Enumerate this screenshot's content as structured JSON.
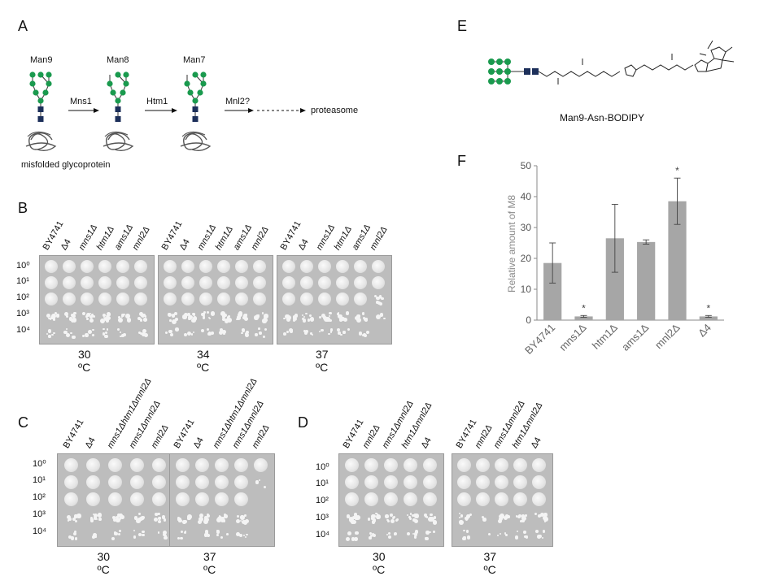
{
  "panels": {
    "A": {
      "letter": "A",
      "stages": [
        "Man9",
        "Man8",
        "Man7"
      ],
      "enzymes": [
        "Mns1",
        "Htm1",
        "Mnl2?"
      ],
      "destination": "proteasome",
      "substrate_label": "misfolded glycoprotein"
    },
    "B": {
      "letter": "B",
      "plates": [
        {
          "temp": "30 ºC",
          "strains": [
            "BY4741",
            "Δ4",
            "mns1Δ",
            "htm1Δ",
            "ams1Δ",
            "mnl2Δ"
          ]
        },
        {
          "temp": "34 ºC",
          "strains": [
            "BY4741",
            "Δ4",
            "mns1Δ",
            "htm1Δ",
            "ams1Δ",
            "mnl2Δ"
          ]
        },
        {
          "temp": "37 ºC",
          "strains": [
            "BY4741",
            "Δ4",
            "mns1Δ",
            "htm1Δ",
            "ams1Δ",
            "mnl2Δ"
          ]
        }
      ],
      "dilutions": [
        "10⁰",
        "10¹",
        "10²",
        "10³",
        "10⁴"
      ]
    },
    "C": {
      "letter": "C",
      "plates": [
        {
          "temp": "30 ºC",
          "strains": [
            "BY4741",
            "Δ4",
            "mns1Δhtm1Δmnl2Δ",
            "mns1Δmnl2Δ",
            "mnl2Δ"
          ]
        },
        {
          "temp": "37 ºC",
          "strains": [
            "BY4741",
            "Δ4",
            "mns1Δhtm1Δmnl2Δ",
            "mns1Δmnl2Δ",
            "mnl2Δ"
          ]
        }
      ],
      "dilutions": [
        "10⁰",
        "10¹",
        "10²",
        "10³",
        "10⁴"
      ]
    },
    "D": {
      "letter": "D",
      "plates": [
        {
          "temp": "30 ºC",
          "strains": [
            "BY4741",
            "mnl2Δ",
            "mns1Δmnl2Δ",
            "htm1Δmnl2Δ",
            "Δ4"
          ]
        },
        {
          "temp": "37 ºC",
          "strains": [
            "BY4741",
            "mnl2Δ",
            "mns1Δmnl2Δ",
            "htm1Δmnl2Δ",
            "Δ4"
          ]
        }
      ],
      "dilutions": [
        "10⁰",
        "10¹",
        "10²",
        "10³",
        "10⁴"
      ]
    },
    "E": {
      "letter": "E",
      "caption": "Man9-Asn-BODIPY"
    },
    "F": {
      "letter": "F"
    }
  },
  "chart_data": {
    "type": "bar",
    "categories": [
      "BY4741",
      "mns1Δ",
      "htm1Δ",
      "ams1Δ",
      "mnl2Δ",
      "Δ4"
    ],
    "values": [
      18.5,
      1.2,
      26.5,
      25.3,
      38.5,
      1.2
    ],
    "errors": [
      6.5,
      0.3,
      11.0,
      0.7,
      7.5,
      0.3
    ],
    "significance": [
      "",
      "*",
      "",
      "",
      "*",
      "*"
    ],
    "ylabel": "Relative amount of M8",
    "ylim": [
      0,
      50
    ],
    "yticks": [
      0,
      10,
      20,
      30,
      40,
      50
    ],
    "bar_color": "#a6a6a6",
    "grid": false
  }
}
